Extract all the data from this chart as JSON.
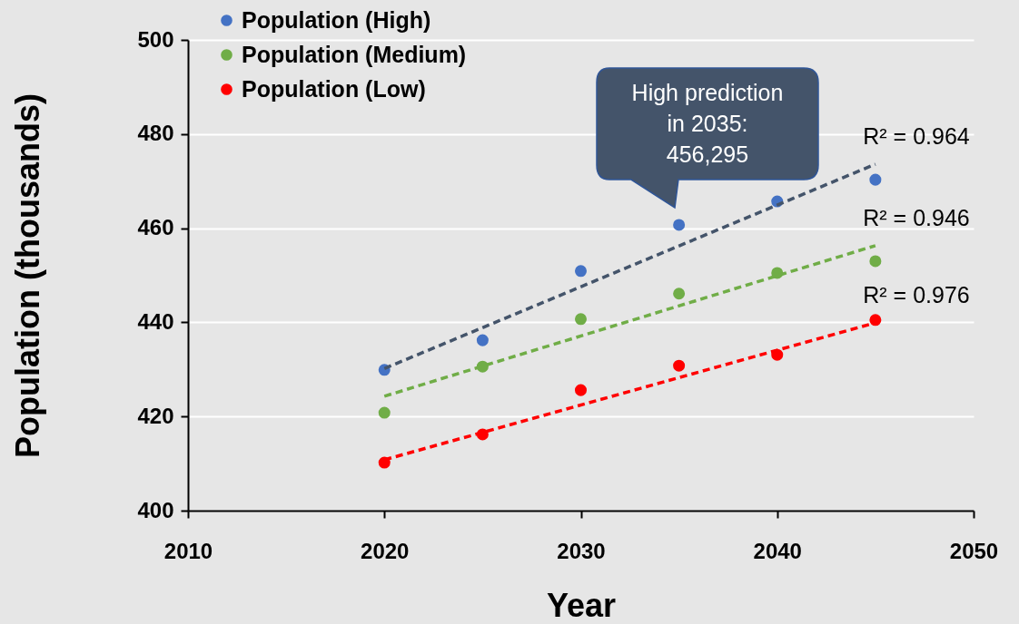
{
  "chart_data": {
    "type": "scatter",
    "xlabel": "Year",
    "ylabel": "Population (thousands)",
    "xlim": [
      2010,
      2050
    ],
    "xticks": [
      2010,
      2020,
      2030,
      2040,
      2050
    ],
    "ylim": [
      400,
      500
    ],
    "yticks": [
      400,
      420,
      440,
      460,
      480,
      500
    ],
    "grid": "y",
    "legend": "top left",
    "marker": "circle",
    "series": [
      {
        "name": "Population (High)",
        "color": "#4472c4",
        "x": [
          2020,
          2025,
          2030,
          2035,
          2040,
          2045
        ],
        "values": [
          429.9,
          436.2,
          450.9,
          460.7,
          465.7,
          470.3
        ]
      },
      {
        "name": "Population (Medium)",
        "color": "#70ad47",
        "x": [
          2020,
          2025,
          2030,
          2035,
          2040,
          2045
        ],
        "values": [
          420.8,
          430.6,
          440.7,
          446.1,
          450.5,
          453.0
        ]
      },
      {
        "name": "Population (Low)",
        "color": "#ff0000",
        "x": [
          2020,
          2025,
          2030,
          2035,
          2040,
          2045
        ],
        "values": [
          410.2,
          416.2,
          425.6,
          430.8,
          433.1,
          440.5
        ]
      },
      {
        "type": "line",
        "line_style": "dashed",
        "marker": "none",
        "color": "#44546a",
        "x": [
          2020,
          2045
        ],
        "values": [
          430.2,
          473.6
        ]
      },
      {
        "type": "line",
        "line_style": "dashed",
        "marker": "none",
        "color": "#70ad47",
        "x": [
          2020,
          2045
        ],
        "values": [
          424.3,
          456.3
        ]
      },
      {
        "type": "line",
        "line_style": "dashed",
        "marker": "none",
        "color": "#ff0000",
        "x": [
          2020,
          2045
        ],
        "values": [
          410.8,
          439.9
        ]
      }
    ],
    "annotations": [
      "High prediction\nin 2035:\n456,295",
      "R² = 0.964",
      "R² = 0.946",
      "R² = 0.976"
    ]
  }
}
